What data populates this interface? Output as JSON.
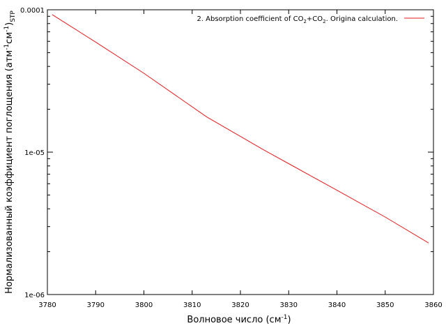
{
  "chart_data": {
    "type": "line",
    "title": "",
    "xlabel": {
      "main": "Волновое число (см",
      "sup": "-1",
      "tail": ")"
    },
    "ylabel": {
      "p1": "Нормализованный коэффициент поглощения (атм",
      "sup1": "-1",
      "p2": "см",
      "sup2": "-1",
      "p3": ")",
      "sub": "STP"
    },
    "xlim": [
      3780,
      3860
    ],
    "ylim": [
      1e-06,
      0.0001
    ],
    "yscale": "log",
    "grid": false,
    "legend_position": "top-right",
    "x_ticks": [
      {
        "value": 3780,
        "label": "3780"
      },
      {
        "value": 3790,
        "label": "3790"
      },
      {
        "value": 3800,
        "label": "3800"
      },
      {
        "value": 3810,
        "label": "3810"
      },
      {
        "value": 3820,
        "label": "3820"
      },
      {
        "value": 3830,
        "label": "3830"
      },
      {
        "value": 3840,
        "label": "3840"
      },
      {
        "value": 3850,
        "label": "3850"
      },
      {
        "value": 3860,
        "label": "3860"
      }
    ],
    "y_ticks": [
      {
        "value": 1e-06,
        "label": "1e-06"
      },
      {
        "value": 1e-05,
        "label": "1e-05"
      },
      {
        "value": 0.0001,
        "label": "0.0001"
      }
    ],
    "series": [
      {
        "name": {
          "a": "2. Absorption coefficient of CO",
          "s1": "2",
          "b": "+CO",
          "s2": "2",
          "c": ". Origina calculation."
        },
        "color": "#e41a1c",
        "x": [
          3781,
          3790,
          3800,
          3813,
          3820,
          3825,
          3830,
          3840,
          3850,
          3859
        ],
        "y": [
          9.25e-05,
          5.93e-05,
          3.58e-05,
          1.77e-05,
          1.29e-05,
          1.03e-05,
          8.3e-06,
          5.4e-06,
          3.5e-06,
          2.3e-06
        ]
      }
    ]
  }
}
